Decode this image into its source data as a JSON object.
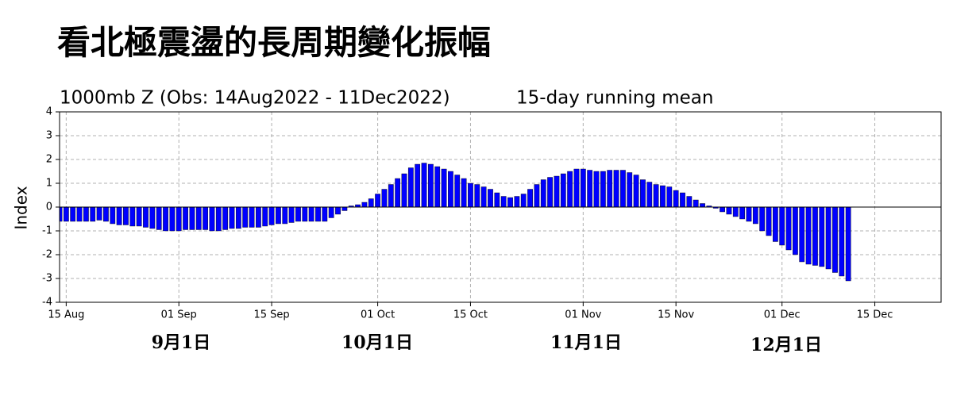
{
  "chart_data": {
    "type": "bar",
    "title": "看北極震盪的長周期變化振幅",
    "subtitle": "1000mb Z (Obs: 14Aug2022 - 11Dec2022)",
    "note": "15-day running mean",
    "y_label": "Index",
    "annotations": [
      "9月1日",
      "10月1日",
      "11月1日",
      "12月1日"
    ],
    "color": "#0000ff",
    "grid": true,
    "x": [
      "2022-08-14",
      "2022-08-15",
      "2022-08-16",
      "2022-08-17",
      "2022-08-18",
      "2022-08-19",
      "2022-08-20",
      "2022-08-21",
      "2022-08-22",
      "2022-08-23",
      "2022-08-24",
      "2022-08-25",
      "2022-08-26",
      "2022-08-27",
      "2022-08-28",
      "2022-08-29",
      "2022-08-30",
      "2022-08-31",
      "2022-09-01",
      "2022-09-02",
      "2022-09-03",
      "2022-09-04",
      "2022-09-05",
      "2022-09-06",
      "2022-09-07",
      "2022-09-08",
      "2022-09-09",
      "2022-09-10",
      "2022-09-11",
      "2022-09-12",
      "2022-09-13",
      "2022-09-14",
      "2022-09-15",
      "2022-09-16",
      "2022-09-17",
      "2022-09-18",
      "2022-09-19",
      "2022-09-20",
      "2022-09-21",
      "2022-09-22",
      "2022-09-23",
      "2022-09-24",
      "2022-09-25",
      "2022-09-26",
      "2022-09-27",
      "2022-09-28",
      "2022-09-29",
      "2022-09-30",
      "2022-10-01",
      "2022-10-02",
      "2022-10-03",
      "2022-10-04",
      "2022-10-05",
      "2022-10-06",
      "2022-10-07",
      "2022-10-08",
      "2022-10-09",
      "2022-10-10",
      "2022-10-11",
      "2022-10-12",
      "2022-10-13",
      "2022-10-14",
      "2022-10-15",
      "2022-10-16",
      "2022-10-17",
      "2022-10-18",
      "2022-10-19",
      "2022-10-20",
      "2022-10-21",
      "2022-10-22",
      "2022-10-23",
      "2022-10-24",
      "2022-10-25",
      "2022-10-26",
      "2022-10-27",
      "2022-10-28",
      "2022-10-29",
      "2022-10-30",
      "2022-10-31",
      "2022-11-01",
      "2022-11-02",
      "2022-11-03",
      "2022-11-04",
      "2022-11-05",
      "2022-11-06",
      "2022-11-07",
      "2022-11-08",
      "2022-11-09",
      "2022-11-10",
      "2022-11-11",
      "2022-11-12",
      "2022-11-13",
      "2022-11-14",
      "2022-11-15",
      "2022-11-16",
      "2022-11-17",
      "2022-11-18",
      "2022-11-19",
      "2022-11-20",
      "2022-11-21",
      "2022-11-22",
      "2022-11-23",
      "2022-11-24",
      "2022-11-25",
      "2022-11-26",
      "2022-11-27",
      "2022-11-28",
      "2022-11-29",
      "2022-11-30",
      "2022-12-01",
      "2022-12-02",
      "2022-12-03",
      "2022-12-04",
      "2022-12-05",
      "2022-12-06",
      "2022-12-07",
      "2022-12-08",
      "2022-12-09",
      "2022-12-10",
      "2022-12-11"
    ],
    "values": [
      -0.6,
      -0.6,
      -0.6,
      -0.6,
      -0.6,
      -0.6,
      -0.55,
      -0.6,
      -0.7,
      -0.75,
      -0.75,
      -0.8,
      -0.8,
      -0.85,
      -0.9,
      -0.95,
      -1.0,
      -1.0,
      -1.0,
      -0.95,
      -0.95,
      -0.95,
      -0.95,
      -1.0,
      -1.0,
      -0.95,
      -0.9,
      -0.9,
      -0.85,
      -0.85,
      -0.85,
      -0.8,
      -0.75,
      -0.7,
      -0.7,
      -0.65,
      -0.6,
      -0.6,
      -0.6,
      -0.6,
      -0.6,
      -0.45,
      -0.3,
      -0.15,
      0.05,
      0.1,
      0.2,
      0.35,
      0.55,
      0.75,
      0.95,
      1.2,
      1.4,
      1.65,
      1.8,
      1.85,
      1.8,
      1.7,
      1.6,
      1.5,
      1.35,
      1.2,
      1.0,
      0.95,
      0.85,
      0.75,
      0.6,
      0.45,
      0.4,
      0.45,
      0.55,
      0.75,
      0.95,
      1.15,
      1.25,
      1.3,
      1.4,
      1.5,
      1.6,
      1.6,
      1.55,
      1.5,
      1.5,
      1.55,
      1.55,
      1.55,
      1.45,
      1.35,
      1.15,
      1.05,
      0.95,
      0.9,
      0.85,
      0.7,
      0.6,
      0.45,
      0.3,
      0.15,
      0.05,
      -0.05,
      -0.2,
      -0.3,
      -0.4,
      -0.5,
      -0.6,
      -0.7,
      -1.0,
      -1.2,
      -1.45,
      -1.6,
      -1.8,
      -2.0,
      -2.3,
      -2.4,
      -2.45,
      -2.5,
      -2.6,
      -2.75,
      -2.9,
      -3.1
    ],
    "xlim": [
      "2022-08-14",
      "2022-12-25"
    ],
    "xticks": [
      {
        "value": "2022-08-15",
        "label": "15 Aug"
      },
      {
        "value": "2022-09-01",
        "label": "01 Sep"
      },
      {
        "value": "2022-09-15",
        "label": "15 Sep"
      },
      {
        "value": "2022-10-01",
        "label": "01 Oct"
      },
      {
        "value": "2022-10-15",
        "label": "15 Oct"
      },
      {
        "value": "2022-11-01",
        "label": "01 Nov"
      },
      {
        "value": "2022-11-15",
        "label": "15 Nov"
      },
      {
        "value": "2022-12-01",
        "label": "01 Dec"
      },
      {
        "value": "2022-12-15",
        "label": "15 Dec"
      }
    ],
    "ylim": [
      -4,
      4
    ],
    "yticks": [
      -4,
      -3,
      -2,
      -1,
      0,
      1,
      2,
      3,
      4
    ]
  }
}
